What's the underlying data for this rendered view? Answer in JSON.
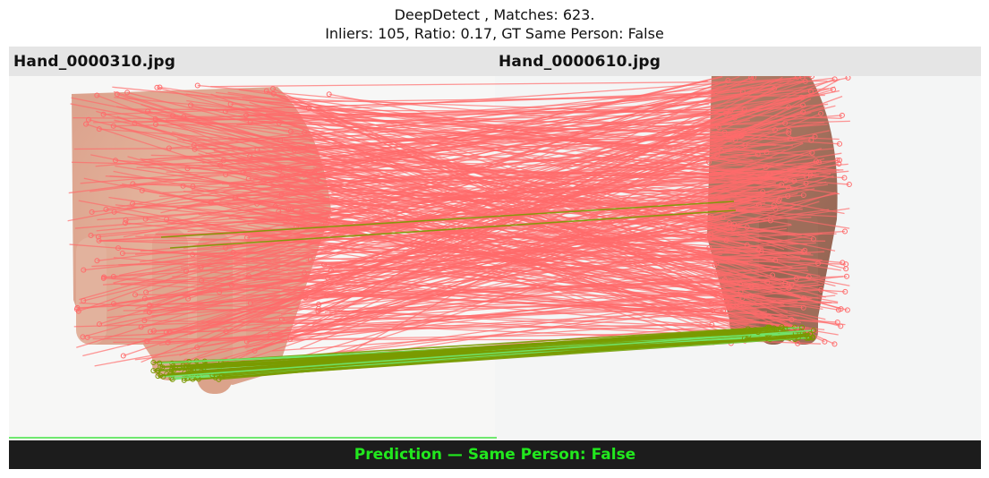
{
  "header": {
    "title_line1": "DeepDetect , Matches: 623.",
    "title_line2": "Inliers: 105, Ratio: 0.17, GT Same Person: False"
  },
  "images": {
    "left_filename": "Hand_0000310.jpg",
    "right_filename": "Hand_0000610.jpg"
  },
  "prediction": {
    "text": "Prediction — Same Person: False"
  },
  "colors": {
    "outlier_match": "#ff6b6b",
    "inlier_match": "#7a9a00",
    "inlier_highlight": "#6fe86f",
    "prediction_text": "#22e81e",
    "label_bar": "#e5e5e5",
    "prediction_bar": "#1c1c1c"
  }
}
